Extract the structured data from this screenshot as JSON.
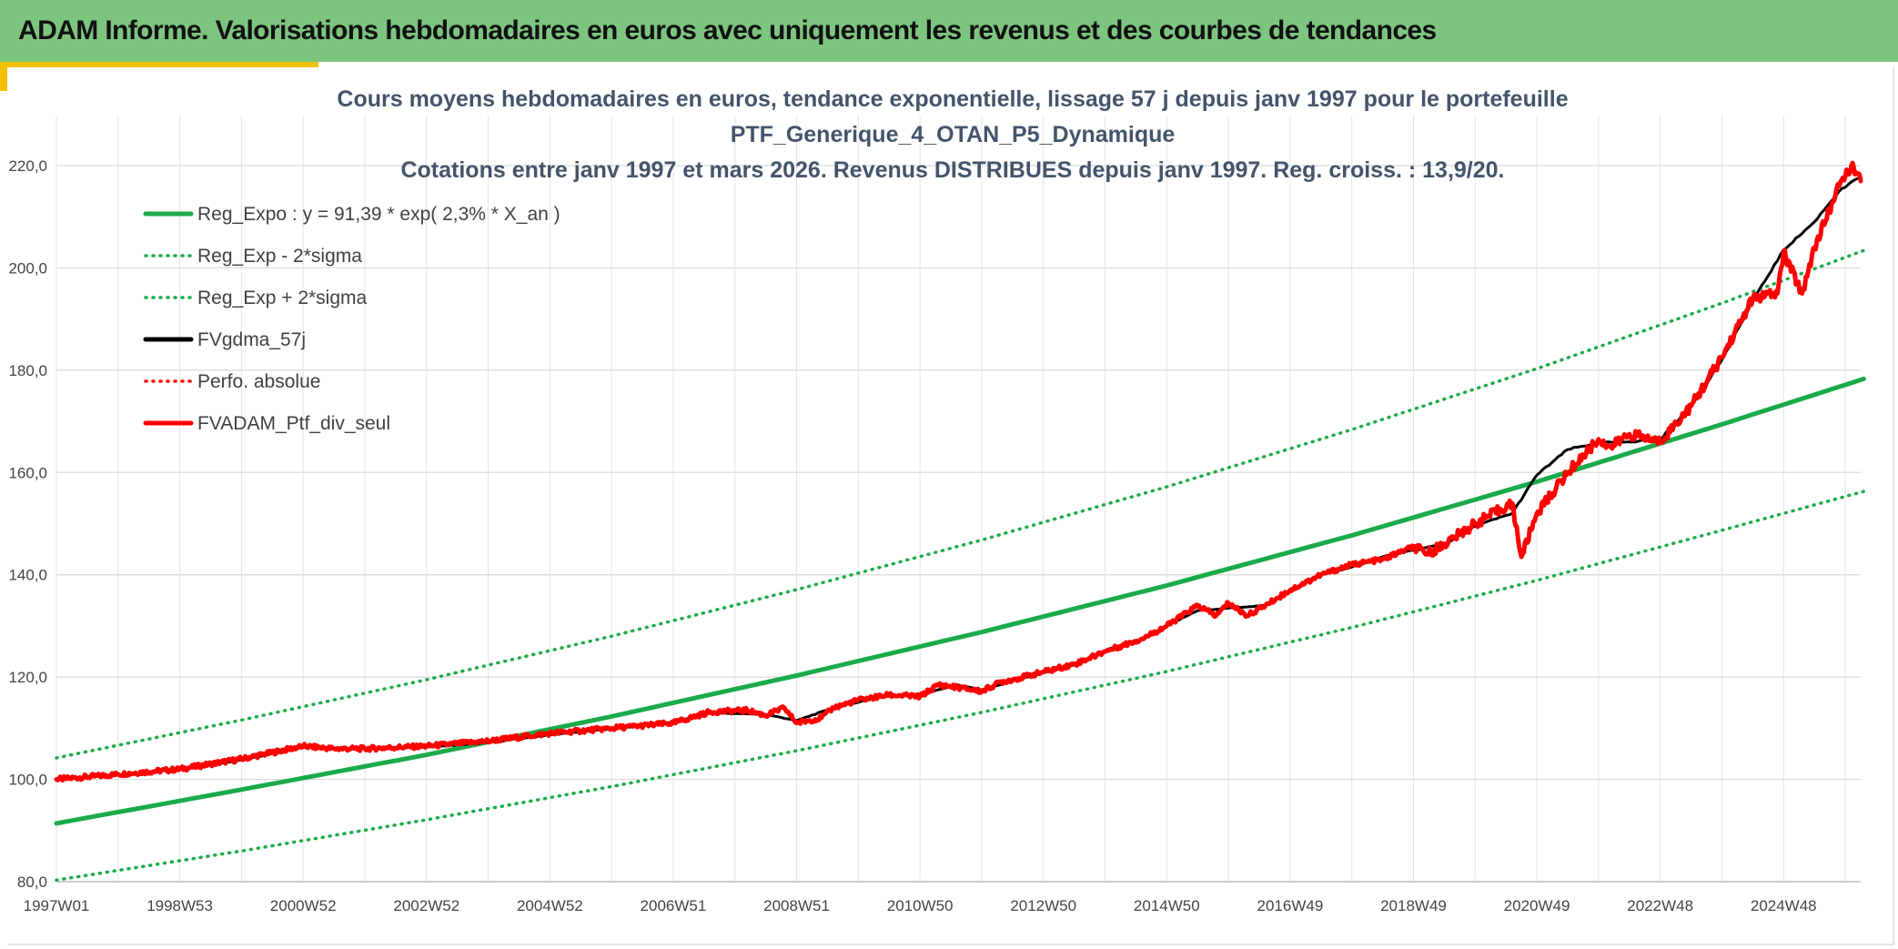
{
  "header": {
    "title": "ADAM Informe. Valorisations hebdomadaires en euros avec uniquement les revenus et des courbes de tendances"
  },
  "chart_data": {
    "type": "line",
    "title_lines": [
      "Cours moyens hebdomadaires en euros, tendance exponentielle, lissage 57 j depuis janv 1997 pour le portefeuille",
      "PTF_Generique_4_OTAN_P5_Dynamique",
      "Cotations entre janv 1997 et mars 2026. Revenus DISTRIBUES depuis janv 1997. Reg. croiss. : 13,9/20."
    ],
    "xlabel": "",
    "ylabel": "",
    "x_range": [
      1997.0,
      2026.25
    ],
    "ylim": [
      80,
      220
    ],
    "y_ticks": [
      80,
      100,
      120,
      140,
      160,
      180,
      200,
      220
    ],
    "y_tick_labels": [
      "80,0",
      "100,0",
      "120,0",
      "140,0",
      "160,0",
      "180,0",
      "200,0",
      "220,0"
    ],
    "x_ticks": [
      {
        "label": "1997W01",
        "x": 1997.0
      },
      {
        "label": "1998W53",
        "x": 1999.0
      },
      {
        "label": "2000W52",
        "x": 2001.0
      },
      {
        "label": "2002W52",
        "x": 2003.0
      },
      {
        "label": "2004W52",
        "x": 2005.0
      },
      {
        "label": "2006W51",
        "x": 2007.0
      },
      {
        "label": "2008W51",
        "x": 2009.0
      },
      {
        "label": "2010W50",
        "x": 2011.0
      },
      {
        "label": "2012W50",
        "x": 2013.0
      },
      {
        "label": "2014W50",
        "x": 2015.0
      },
      {
        "label": "2016W49",
        "x": 2017.0
      },
      {
        "label": "2018W49",
        "x": 2019.0
      },
      {
        "label": "2020W49",
        "x": 2021.0
      },
      {
        "label": "2022W48",
        "x": 2023.0
      },
      {
        "label": "2024W48",
        "x": 2025.0
      }
    ],
    "grid": true,
    "legend_position": "top-left",
    "series": [
      {
        "name": "Reg_Expo : y = 91,39 * exp( 2,3% *  X_an )",
        "color": "#1aaa4a",
        "style": "solid",
        "width": 5,
        "x": [
          1997,
          2000,
          2003,
          2006,
          2009,
          2012,
          2015,
          2018,
          2021,
          2024,
          2026.3
        ],
        "values": [
          91.4,
          98.0,
          104.8,
          112.3,
          120.3,
          128.8,
          137.9,
          147.7,
          158.2,
          169.4,
          178.3
        ]
      },
      {
        "name": "Reg_Exp - 2*sigma",
        "color": "#1aaa4a",
        "style": "dotted",
        "width": 3.5,
        "x": [
          1997,
          2000,
          2003,
          2006,
          2009,
          2012,
          2015,
          2018,
          2021,
          2024,
          2026.3
        ],
        "values": [
          80.3,
          86.0,
          92.1,
          98.6,
          105.6,
          113.1,
          121.1,
          129.7,
          138.9,
          148.7,
          156.3
        ]
      },
      {
        "name": "Reg_Exp + 2*sigma",
        "color": "#1aaa4a",
        "style": "dotted",
        "width": 3.5,
        "x": [
          1997,
          2000,
          2003,
          2006,
          2009,
          2012,
          2015,
          2018,
          2021,
          2024,
          2026.3
        ],
        "values": [
          104.2,
          111.6,
          119.5,
          128.0,
          137.1,
          146.8,
          157.2,
          168.4,
          180.3,
          193.1,
          203.4
        ]
      },
      {
        "name": "FVgdma_57j",
        "color": "#000000",
        "style": "solid",
        "width": 3,
        "x": [
          1997.0,
          1998.0,
          1999.0,
          2000.0,
          2001.0,
          2002.0,
          2003.0,
          2004.0,
          2005.0,
          2006.0,
          2007.0,
          2007.6,
          2008.5,
          2009.0,
          2009.6,
          2010.5,
          2011.0,
          2011.6,
          2012.0,
          2012.5,
          2013.0,
          2013.5,
          2014.0,
          2014.6,
          2015.0,
          2015.5,
          2016.0,
          2016.6,
          2017.0,
          2017.5,
          2018.0,
          2018.5,
          2019.0,
          2019.5,
          2020.0,
          2020.6,
          2021.0,
          2021.5,
          2022.0,
          2022.5,
          2023.0,
          2023.5,
          2024.0,
          2024.5,
          2025.0,
          2025.5,
          2025.9,
          2026.2
        ],
        "values": [
          100.0,
          100.9,
          102.0,
          103.8,
          106.3,
          106.0,
          106.3,
          107.2,
          108.7,
          109.9,
          111.2,
          113.0,
          112.7,
          111.5,
          114.0,
          116.5,
          116.5,
          118.5,
          117.5,
          119.2,
          120.8,
          122.4,
          125.2,
          127.5,
          130.0,
          133.0,
          133.5,
          134.0,
          136.8,
          140.0,
          141.5,
          143.5,
          144.8,
          146.0,
          149.5,
          152.0,
          159.5,
          164.5,
          165.8,
          166.0,
          166.5,
          173.0,
          182.0,
          193.5,
          203.5,
          209.0,
          215.0,
          217.5
        ]
      },
      {
        "name": "Perfo. absolue",
        "color": "#ff0000",
        "style": "dotted",
        "width": 3,
        "x": [],
        "values": []
      },
      {
        "name": "FVADAM_Ptf_div_seul",
        "color": "#ff0000",
        "style": "solid",
        "width": 5,
        "x": [
          1997.0,
          1998.0,
          1999.0,
          2000.0,
          2001.0,
          2001.5,
          2002.0,
          2003.0,
          2004.0,
          2005.0,
          2006.0,
          2007.0,
          2007.6,
          2008.2,
          2008.5,
          2008.8,
          2009.0,
          2009.4,
          2009.6,
          2010.0,
          2010.5,
          2011.0,
          2011.3,
          2011.6,
          2012.0,
          2012.3,
          2012.5,
          2013.0,
          2013.5,
          2014.0,
          2014.6,
          2015.0,
          2015.5,
          2015.8,
          2016.0,
          2016.3,
          2016.6,
          2017.0,
          2017.5,
          2018.0,
          2018.5,
          2019.0,
          2019.2,
          2019.5,
          2020.0,
          2020.6,
          2020.75,
          2021.0,
          2021.5,
          2022.0,
          2022.2,
          2022.5,
          2023.0,
          2023.5,
          2024.0,
          2024.5,
          2024.9,
          2025.0,
          2025.3,
          2025.5,
          2025.9,
          2026.1,
          2026.25
        ],
        "values": [
          100.0,
          101.0,
          102.0,
          104.0,
          106.5,
          106.0,
          106.0,
          106.5,
          107.5,
          109.0,
          110.0,
          111.0,
          113.2,
          113.5,
          112.5,
          114.0,
          111.0,
          112.0,
          114.0,
          115.5,
          116.5,
          116.2,
          118.5,
          118.0,
          117.2,
          119.0,
          119.5,
          121.0,
          122.5,
          125.0,
          127.5,
          130.0,
          134.0,
          132.0,
          134.5,
          132.0,
          134.0,
          137.0,
          140.0,
          142.0,
          143.0,
          145.5,
          144.0,
          146.0,
          150.0,
          154.0,
          143.5,
          152.0,
          160.0,
          166.5,
          165.0,
          167.5,
          166.0,
          173.0,
          182.5,
          194.0,
          195.0,
          203.0,
          195.0,
          204.0,
          216.0,
          220.0,
          217.0
        ]
      }
    ]
  }
}
